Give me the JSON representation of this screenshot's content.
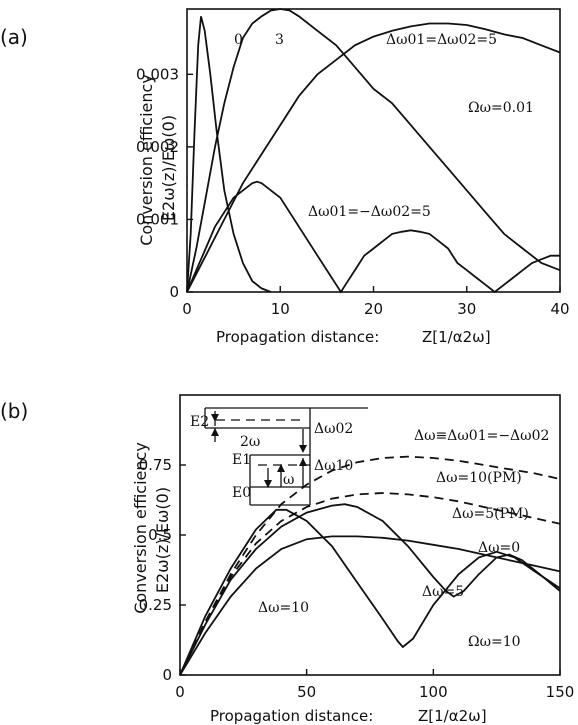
{
  "chart_data": [
    {
      "panel": "(a)",
      "type": "line",
      "xlabel": "Propagation distance:",
      "xunit": "Z[1/α2ω]",
      "ylabel": "Conversion efficiency",
      "ysublabel": "E2ω(z)/Eω(0)",
      "xlim": [
        0,
        40
      ],
      "ylim": [
        0,
        0.0039
      ],
      "xticks": [
        "0",
        "10",
        "20",
        "30",
        "40"
      ],
      "yticks": [
        "0",
        "0.001",
        "0.002",
        "0.003"
      ],
      "xtick_values": [
        0,
        10,
        20,
        30,
        40
      ],
      "ytick_values": [
        0,
        0.001,
        0.002,
        0.003
      ],
      "series": [
        {
          "name": "0",
          "points": [
            [
              0,
              0
            ],
            [
              0.4,
              0.0008
            ],
            [
              0.8,
              0.0022
            ],
            [
              1.2,
              0.0034
            ],
            [
              1.5,
              0.0038
            ],
            [
              1.9,
              0.0036
            ],
            [
              2.5,
              0.003
            ],
            [
              3.2,
              0.0022
            ],
            [
              4.0,
              0.0014
            ],
            [
              5.0,
              0.0008
            ],
            [
              6.0,
              0.0004
            ],
            [
              7.0,
              0.00015
            ],
            [
              8.0,
              5e-05
            ],
            [
              9.0,
              0.0
            ]
          ]
        },
        {
          "name": "3",
          "points": [
            [
              0,
              0
            ],
            [
              1,
              0.0006
            ],
            [
              2,
              0.0013
            ],
            [
              3,
              0.002
            ],
            [
              4,
              0.0026
            ],
            [
              5,
              0.0031
            ],
            [
              6,
              0.0035
            ],
            [
              7,
              0.0037
            ],
            [
              8,
              0.0038
            ],
            [
              9,
              0.00388
            ],
            [
              10,
              0.0039
            ],
            [
              11,
              0.00388
            ],
            [
              12,
              0.0038
            ],
            [
              14,
              0.0036
            ],
            [
              16,
              0.0034
            ],
            [
              18,
              0.0031
            ],
            [
              20,
              0.0028
            ],
            [
              22,
              0.0026
            ],
            [
              24,
              0.0023
            ],
            [
              26,
              0.002
            ],
            [
              28,
              0.0017
            ],
            [
              30,
              0.0014
            ],
            [
              32,
              0.0011
            ],
            [
              34,
              0.0008
            ],
            [
              36,
              0.0006
            ],
            [
              38,
              0.0004
            ],
            [
              40,
              0.0003
            ]
          ]
        },
        {
          "name": "Δω01=Δω02=5",
          "points": [
            [
              0,
              0
            ],
            [
              2,
              0.0005
            ],
            [
              4,
              0.001
            ],
            [
              6,
              0.0015
            ],
            [
              8,
              0.0019
            ],
            [
              10,
              0.0023
            ],
            [
              12,
              0.0027
            ],
            [
              14,
              0.003
            ],
            [
              16,
              0.0032
            ],
            [
              18,
              0.0034
            ],
            [
              20,
              0.00352
            ],
            [
              22,
              0.0036
            ],
            [
              24,
              0.00366
            ],
            [
              26,
              0.0037
            ],
            [
              28,
              0.0037
            ],
            [
              30,
              0.00368
            ],
            [
              32,
              0.00362
            ],
            [
              34,
              0.00355
            ],
            [
              36,
              0.0035
            ],
            [
              38,
              0.0034
            ],
            [
              40,
              0.0033
            ]
          ]
        },
        {
          "name": "Δω01=−Δω02=5",
          "points": [
            [
              0,
              0
            ],
            [
              1,
              0.0003
            ],
            [
              2,
              0.0006
            ],
            [
              3,
              0.0009
            ],
            [
              4,
              0.0011
            ],
            [
              5,
              0.0013
            ],
            [
              6,
              0.0014
            ],
            [
              7,
              0.0015
            ],
            [
              7.5,
              0.00152
            ],
            [
              8,
              0.0015
            ],
            [
              9,
              0.0014
            ],
            [
              10,
              0.0013
            ],
            [
              11,
              0.0011
            ],
            [
              12,
              0.0009
            ],
            [
              13,
              0.0007
            ],
            [
              14,
              0.0005
            ],
            [
              15,
              0.0003
            ],
            [
              16,
              0.0001
            ],
            [
              16.5,
              0.0
            ],
            [
              17,
              0.0001
            ],
            [
              18,
              0.0003
            ],
            [
              19,
              0.0005
            ],
            [
              20,
              0.0006
            ],
            [
              21,
              0.0007
            ],
            [
              22,
              0.0008
            ],
            [
              23,
              0.00083
            ],
            [
              24,
              0.00085
            ],
            [
              25,
              0.00083
            ],
            [
              26,
              0.0008
            ],
            [
              27,
              0.0007
            ],
            [
              28,
              0.0006
            ],
            [
              29,
              0.0004
            ],
            [
              30,
              0.0003
            ],
            [
              31,
              0.0002
            ],
            [
              32,
              0.0001
            ],
            [
              33,
              0.0
            ],
            [
              34,
              0.0001
            ],
            [
              35,
              0.0002
            ],
            [
              36,
              0.0003
            ],
            [
              37,
              0.0004
            ],
            [
              38,
              0.00045
            ],
            [
              39,
              0.0005
            ],
            [
              40,
              0.0005
            ]
          ]
        }
      ],
      "annotations": [
        "0",
        "3",
        "Δω01=Δω02=5",
        "Ωω=0.01",
        "Δω01=−Δω02=5"
      ]
    },
    {
      "panel": "(b)",
      "type": "line",
      "xlabel": "Propagation distance:",
      "xunit": "Z[1/α2ω]",
      "ylabel": "Conversion efficiency",
      "ysublabel": "E2ω(z)/Eω(0)",
      "xlim": [
        0,
        150
      ],
      "ylim": [
        0,
        1.0
      ],
      "xticks": [
        "0",
        "50",
        "100",
        "150"
      ],
      "yticks": [
        "0",
        "0.25",
        "0.5",
        "0.75"
      ],
      "xtick_values": [
        0,
        50,
        100,
        150
      ],
      "ytick_values": [
        0,
        0.25,
        0.5,
        0.75
      ],
      "series": [
        {
          "name": "Δω=10(PM)",
          "dashed": true,
          "points": [
            [
              0,
              0
            ],
            [
              10,
              0.19
            ],
            [
              20,
              0.36
            ],
            [
              30,
              0.5
            ],
            [
              40,
              0.61
            ],
            [
              50,
              0.68
            ],
            [
              60,
              0.73
            ],
            [
              70,
              0.76
            ],
            [
              80,
              0.775
            ],
            [
              90,
              0.78
            ],
            [
              100,
              0.775
            ],
            [
              110,
              0.765
            ],
            [
              120,
              0.75
            ],
            [
              130,
              0.735
            ],
            [
              140,
              0.72
            ],
            [
              150,
              0.7
            ]
          ]
        },
        {
          "name": "Δω=5(PM)",
          "dashed": true,
          "points": [
            [
              0,
              0
            ],
            [
              10,
              0.19
            ],
            [
              20,
              0.35
            ],
            [
              30,
              0.47
            ],
            [
              40,
              0.55
            ],
            [
              50,
              0.6
            ],
            [
              60,
              0.63
            ],
            [
              70,
              0.645
            ],
            [
              80,
              0.65
            ],
            [
              90,
              0.645
            ],
            [
              100,
              0.635
            ],
            [
              110,
              0.62
            ],
            [
              120,
              0.6
            ],
            [
              130,
              0.58
            ],
            [
              140,
              0.56
            ],
            [
              150,
              0.54
            ]
          ]
        },
        {
          "name": "Δω=0",
          "points": [
            [
              0,
              0
            ],
            [
              10,
              0.15
            ],
            [
              20,
              0.28
            ],
            [
              30,
              0.38
            ],
            [
              40,
              0.45
            ],
            [
              50,
              0.485
            ],
            [
              60,
              0.495
            ],
            [
              70,
              0.495
            ],
            [
              80,
              0.49
            ],
            [
              90,
              0.48
            ],
            [
              100,
              0.465
            ],
            [
              110,
              0.45
            ],
            [
              120,
              0.43
            ],
            [
              130,
              0.41
            ],
            [
              140,
              0.39
            ],
            [
              150,
              0.37
            ]
          ]
        },
        {
          "name": "Δω=5",
          "points": [
            [
              0,
              0
            ],
            [
              10,
              0.18
            ],
            [
              20,
              0.34
            ],
            [
              30,
              0.45
            ],
            [
              40,
              0.53
            ],
            [
              50,
              0.58
            ],
            [
              60,
              0.605
            ],
            [
              65,
              0.61
            ],
            [
              70,
              0.6
            ],
            [
              80,
              0.55
            ],
            [
              90,
              0.46
            ],
            [
              100,
              0.35
            ],
            [
              105,
              0.3
            ],
            [
              108,
              0.28
            ],
            [
              112,
              0.3
            ],
            [
              118,
              0.36
            ],
            [
              125,
              0.42
            ],
            [
              130,
              0.43
            ],
            [
              135,
              0.41
            ],
            [
              142,
              0.36
            ],
            [
              150,
              0.3
            ]
          ]
        },
        {
          "name": "Δω=10",
          "points": [
            [
              0,
              0
            ],
            [
              10,
              0.21
            ],
            [
              20,
              0.38
            ],
            [
              30,
              0.52
            ],
            [
              38,
              0.59
            ],
            [
              42,
              0.59
            ],
            [
              50,
              0.55
            ],
            [
              60,
              0.46
            ],
            [
              70,
              0.33
            ],
            [
              80,
              0.2
            ],
            [
              86,
              0.12
            ],
            [
              88,
              0.1
            ],
            [
              92,
              0.13
            ],
            [
              100,
              0.25
            ],
            [
              110,
              0.36
            ],
            [
              118,
              0.42
            ],
            [
              125,
              0.44
            ],
            [
              132,
              0.42
            ],
            [
              140,
              0.37
            ],
            [
              150,
              0.31
            ]
          ]
        }
      ],
      "annotations": [
        "Δω≡Δω01=−Δω02",
        "Δω=10(PM)",
        "Δω=5(PM)",
        "Δω=0",
        "Δω=5",
        "Δω=10",
        "Ωω=10"
      ],
      "inset": {
        "labels": [
          "E2",
          "E1",
          "E0",
          "2ω",
          "ω",
          "Δω02",
          "Δω10"
        ]
      }
    }
  ]
}
